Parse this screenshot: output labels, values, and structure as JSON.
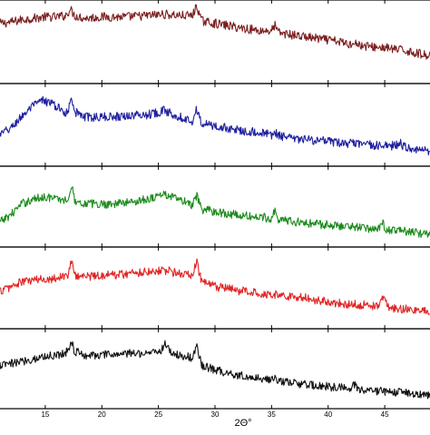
{
  "chart_data": {
    "type": "line",
    "xlabel": "2Θ°",
    "xlim": [
      11,
      49
    ],
    "x_ticks": [
      "15",
      "20",
      "25",
      "30",
      "35",
      "40",
      "45"
    ],
    "x_tick_values": [
      15,
      20,
      25,
      30,
      35,
      40,
      45
    ],
    "grid": false,
    "legend": "none",
    "series": [
      {
        "color": "#7a1e1e",
        "points": [
          [
            11,
            0.78
          ],
          [
            12,
            0.8
          ],
          [
            13,
            0.84
          ],
          [
            14,
            0.86
          ],
          [
            15,
            0.88
          ],
          [
            16,
            0.88
          ],
          [
            16.8,
            0.9
          ],
          [
            17.2,
            1.0
          ],
          [
            17.6,
            0.9
          ],
          [
            18.5,
            0.86
          ],
          [
            20,
            0.88
          ],
          [
            22,
            0.88
          ],
          [
            24,
            0.9
          ],
          [
            25.5,
            0.92
          ],
          [
            27,
            0.9
          ],
          [
            28,
            0.9
          ],
          [
            28.4,
            1.05
          ],
          [
            28.8,
            0.82
          ],
          [
            30,
            0.78
          ],
          [
            32,
            0.72
          ],
          [
            34,
            0.67
          ],
          [
            35,
            0.67
          ],
          [
            35.3,
            0.75
          ],
          [
            35.6,
            0.64
          ],
          [
            37,
            0.6
          ],
          [
            39,
            0.55
          ],
          [
            41,
            0.5
          ],
          [
            42,
            0.46
          ],
          [
            42.3,
            0.52
          ],
          [
            42.6,
            0.45
          ],
          [
            44,
            0.42
          ],
          [
            45,
            0.41
          ],
          [
            46,
            0.38
          ],
          [
            47,
            0.36
          ],
          [
            48,
            0.32
          ],
          [
            49,
            0.28
          ]
        ]
      },
      {
        "color": "#1f1fa0",
        "points": [
          [
            11,
            0.35
          ],
          [
            12,
            0.45
          ],
          [
            13,
            0.65
          ],
          [
            14,
            0.8
          ],
          [
            14.8,
            0.88
          ],
          [
            15.5,
            0.84
          ],
          [
            16.5,
            0.72
          ],
          [
            17,
            0.68
          ],
          [
            17.3,
            0.98
          ],
          [
            17.6,
            0.7
          ],
          [
            18.5,
            0.62
          ],
          [
            20,
            0.62
          ],
          [
            22,
            0.64
          ],
          [
            24,
            0.66
          ],
          [
            25.5,
            0.72
          ],
          [
            27,
            0.62
          ],
          [
            28,
            0.56
          ],
          [
            28.4,
            0.75
          ],
          [
            28.8,
            0.52
          ],
          [
            30,
            0.48
          ],
          [
            32,
            0.42
          ],
          [
            34,
            0.38
          ],
          [
            35,
            0.34
          ],
          [
            35.3,
            0.4
          ],
          [
            35.6,
            0.33
          ],
          [
            37,
            0.28
          ],
          [
            39,
            0.26
          ],
          [
            41,
            0.22
          ],
          [
            43,
            0.2
          ],
          [
            45,
            0.17
          ],
          [
            46,
            0.18
          ],
          [
            46.3,
            0.24
          ],
          [
            46.6,
            0.16
          ],
          [
            48,
            0.12
          ],
          [
            49,
            0.1
          ]
        ]
      },
      {
        "color": "#1a8a1a",
        "points": [
          [
            11,
            0.25
          ],
          [
            12,
            0.38
          ],
          [
            13,
            0.55
          ],
          [
            14,
            0.62
          ],
          [
            15,
            0.66
          ],
          [
            16,
            0.62
          ],
          [
            17,
            0.6
          ],
          [
            17.3,
            0.85
          ],
          [
            17.6,
            0.6
          ],
          [
            18.5,
            0.55
          ],
          [
            20,
            0.54
          ],
          [
            22,
            0.56
          ],
          [
            24,
            0.62
          ],
          [
            25.5,
            0.7
          ],
          [
            27,
            0.6
          ],
          [
            28,
            0.52
          ],
          [
            28.4,
            0.66
          ],
          [
            28.8,
            0.46
          ],
          [
            30,
            0.42
          ],
          [
            32,
            0.36
          ],
          [
            34,
            0.33
          ],
          [
            35,
            0.32
          ],
          [
            35.3,
            0.45
          ],
          [
            35.6,
            0.3
          ],
          [
            37,
            0.26
          ],
          [
            39,
            0.22
          ],
          [
            41,
            0.2
          ],
          [
            43,
            0.16
          ],
          [
            44.5,
            0.15
          ],
          [
            44.8,
            0.27
          ],
          [
            45.1,
            0.13
          ],
          [
            47,
            0.1
          ],
          [
            49,
            0.06
          ]
        ]
      },
      {
        "color": "#e02424",
        "points": [
          [
            11,
            0.45
          ],
          [
            12,
            0.52
          ],
          [
            13,
            0.6
          ],
          [
            14,
            0.62
          ],
          [
            15,
            0.64
          ],
          [
            16,
            0.66
          ],
          [
            17,
            0.7
          ],
          [
            17.3,
            0.92
          ],
          [
            17.6,
            0.7
          ],
          [
            18.5,
            0.68
          ],
          [
            20,
            0.7
          ],
          [
            22,
            0.72
          ],
          [
            24,
            0.76
          ],
          [
            25.5,
            0.78
          ],
          [
            27,
            0.72
          ],
          [
            28,
            0.7
          ],
          [
            28.4,
            0.9
          ],
          [
            28.8,
            0.6
          ],
          [
            30,
            0.52
          ],
          [
            32,
            0.46
          ],
          [
            34,
            0.42
          ],
          [
            35,
            0.4
          ],
          [
            36,
            0.38
          ],
          [
            38,
            0.34
          ],
          [
            40,
            0.28
          ],
          [
            42,
            0.24
          ],
          [
            44,
            0.22
          ],
          [
            44.6,
            0.25
          ],
          [
            44.9,
            0.4
          ],
          [
            45.2,
            0.2
          ],
          [
            47,
            0.16
          ],
          [
            49,
            0.12
          ]
        ]
      },
      {
        "color": "#111111",
        "points": [
          [
            11,
            0.55
          ],
          [
            12,
            0.58
          ],
          [
            13,
            0.62
          ],
          [
            14,
            0.66
          ],
          [
            15,
            0.7
          ],
          [
            16,
            0.72
          ],
          [
            17,
            0.78
          ],
          [
            17.3,
            0.95
          ],
          [
            17.6,
            0.78
          ],
          [
            18.5,
            0.72
          ],
          [
            20,
            0.72
          ],
          [
            22,
            0.74
          ],
          [
            24,
            0.76
          ],
          [
            25.3,
            0.8
          ],
          [
            25.6,
            0.92
          ],
          [
            26,
            0.78
          ],
          [
            27,
            0.7
          ],
          [
            28,
            0.68
          ],
          [
            28.4,
            0.86
          ],
          [
            28.8,
            0.56
          ],
          [
            30,
            0.48
          ],
          [
            32,
            0.4
          ],
          [
            34,
            0.34
          ],
          [
            35,
            0.32
          ],
          [
            35.3,
            0.4
          ],
          [
            35.6,
            0.3
          ],
          [
            37,
            0.26
          ],
          [
            39,
            0.22
          ],
          [
            41,
            0.2
          ],
          [
            42,
            0.18
          ],
          [
            42.3,
            0.26
          ],
          [
            42.6,
            0.16
          ],
          [
            44,
            0.14
          ],
          [
            46,
            0.12
          ],
          [
            48,
            0.1
          ],
          [
            49,
            0.08
          ]
        ]
      }
    ]
  }
}
